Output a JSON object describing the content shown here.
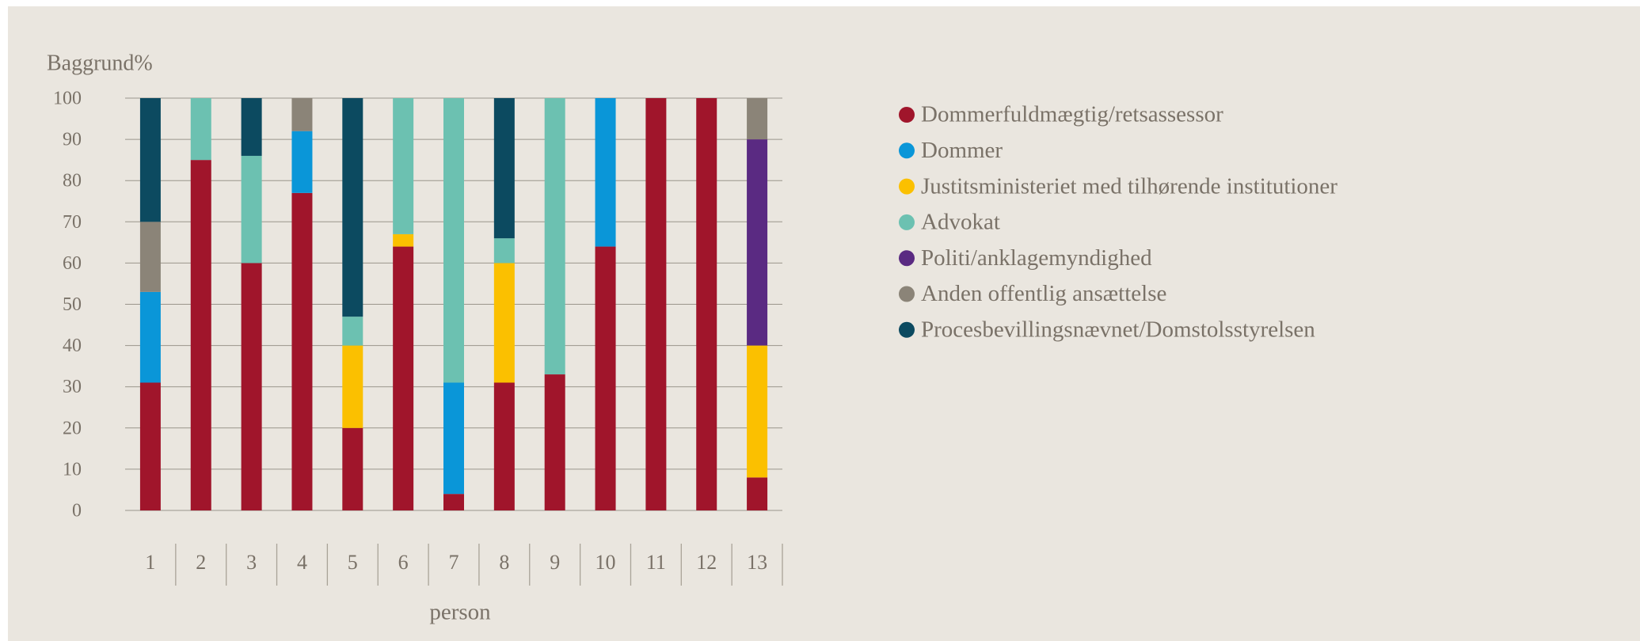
{
  "chart_data": {
    "type": "stacked_bar",
    "ylabel": "Baggrund%",
    "xlabel": "person",
    "categories": [
      "1",
      "2",
      "3",
      "4",
      "5",
      "6",
      "7",
      "8",
      "9",
      "10",
      "11",
      "12",
      "13"
    ],
    "series": [
      {
        "name": "Dommerfuldmægtig/retsassessor",
        "color": "#a0152b",
        "values": [
          31,
          85,
          60,
          77,
          20,
          64,
          4,
          31,
          33,
          64,
          100,
          100,
          8
        ]
      },
      {
        "name": "Dommer",
        "color": "#0a96d8",
        "values": [
          22,
          0,
          0,
          15,
          0,
          0,
          27,
          0,
          0,
          36,
          0,
          0,
          0
        ]
      },
      {
        "name": "Justitsministeriet med tilhørende institutioner",
        "color": "#fbc000",
        "values": [
          0,
          0,
          0,
          0,
          20,
          3,
          0,
          29,
          0,
          0,
          0,
          0,
          32
        ]
      },
      {
        "name": "Advokat",
        "color": "#6cc1b1",
        "values": [
          0,
          15,
          26,
          0,
          7,
          33,
          69,
          6,
          67,
          0,
          0,
          0,
          0
        ]
      },
      {
        "name": "Politi/anklagemyndighed",
        "color": "#5a2a82",
        "values": [
          0,
          0,
          0,
          0,
          0,
          0,
          0,
          0,
          0,
          0,
          0,
          0,
          50
        ]
      },
      {
        "name": "Anden offentlig ansættelse",
        "color": "#8b8478",
        "values": [
          17,
          0,
          0,
          8,
          0,
          0,
          0,
          0,
          0,
          0,
          0,
          0,
          10
        ]
      },
      {
        "name": "Procesbevillingsnævnet/Domstolsstyrelsen",
        "color": "#0c4a60",
        "values": [
          30,
          0,
          14,
          0,
          53,
          0,
          0,
          34,
          0,
          0,
          0,
          0,
          0
        ]
      }
    ],
    "ylim": [
      0,
      100
    ],
    "yticks": [
      0,
      10,
      20,
      30,
      40,
      50,
      60,
      70,
      80,
      90,
      100
    ],
    "grid": true,
    "legend": "right"
  }
}
